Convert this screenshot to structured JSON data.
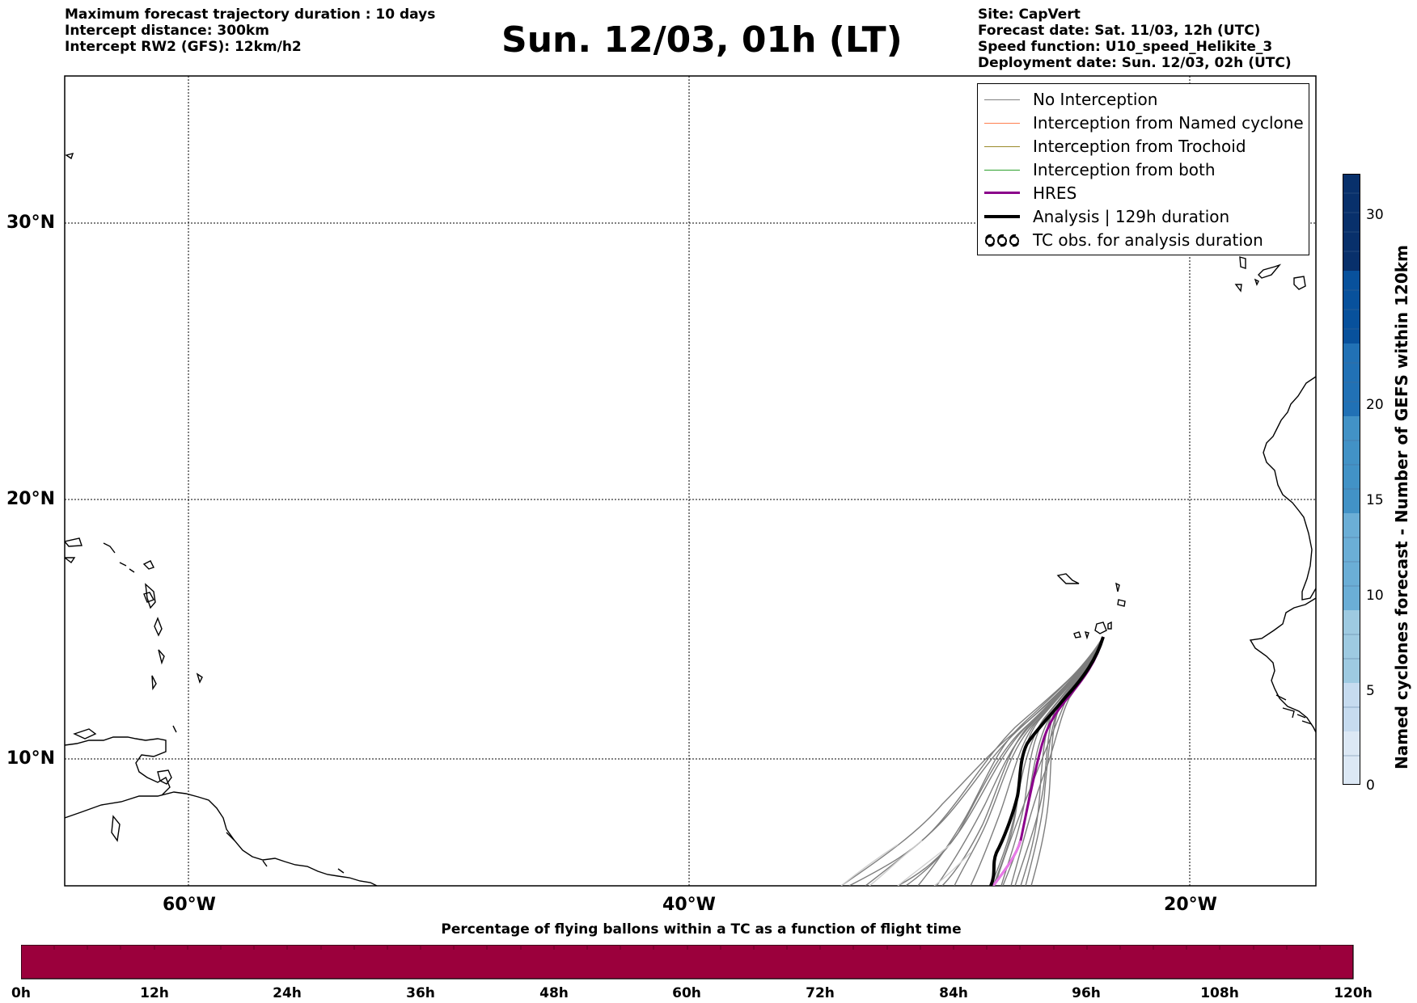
{
  "header": {
    "left": [
      "Maximum forecast trajectory duration : 10 days",
      "Intercept distance: 300km",
      "Intercept RW2 (GFS):  12km/h2"
    ],
    "title": "Sun. 12/03, 01h (LT)",
    "right": [
      "Site: CapVert",
      "Forecast date: Sat. 11/03, 12h (UTC)",
      "Speed function: U10_speed_Helikite_3",
      "Deployment date: Sun. 12/03, 02h (UTC)"
    ]
  },
  "map": {
    "lat_labels": [
      "30°N",
      "20°N",
      "10°N"
    ],
    "lon_labels": [
      "60°W",
      "40°W",
      "20°W"
    ],
    "grid": true
  },
  "legend": {
    "items": [
      {
        "label": "No Interception",
        "color": "#808080",
        "symbol": "line"
      },
      {
        "label": "Interception from Named cyclone",
        "color": "#ff7f50",
        "symbol": "line"
      },
      {
        "label": "Interception from Trochoid",
        "color": "#9a8a2a",
        "symbol": "line"
      },
      {
        "label": "Interception from both",
        "color": "#2ca02c",
        "symbol": "line"
      },
      {
        "label": "HRES",
        "color": "#8b008b",
        "symbol": "thick-line"
      },
      {
        "label": "Analysis | 129h duration",
        "color": "#000000",
        "symbol": "thick-line"
      },
      {
        "label": "TC obs. for analysis duration",
        "color": "#000000",
        "symbol": "cyclone-icon"
      }
    ]
  },
  "colorbar_right": {
    "title": "Named cyclones forecast - Number of GEFS within 120km",
    "ticks": [
      "0",
      "5",
      "10",
      "15",
      "20",
      "30"
    ],
    "colors": [
      "#dce8f5",
      "#c6dbef",
      "#9ecae1",
      "#6baed6",
      "#4292c6",
      "#2171b5",
      "#08519c",
      "#08306b"
    ]
  },
  "colorbar_bottom": {
    "title": "Percentage of flying ballons within a TC as a function of flight time",
    "ticks": [
      "0h",
      "12h",
      "24h",
      "36h",
      "48h",
      "60h",
      "72h",
      "84h",
      "96h",
      "108h",
      "120h"
    ],
    "fill_color": "#9b003c"
  }
}
